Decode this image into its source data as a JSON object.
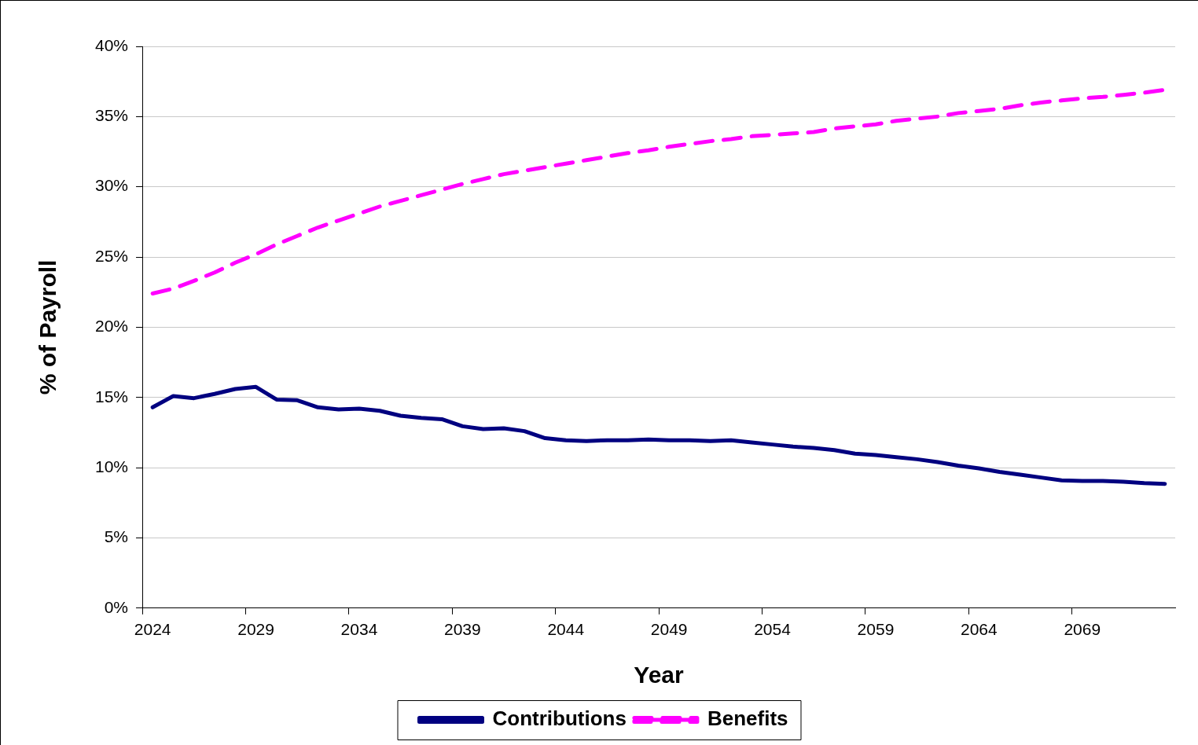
{
  "chart_data": {
    "type": "line",
    "xlabel": "Year",
    "ylabel": "% of Payroll",
    "categories": [
      "2024",
      null,
      null,
      null,
      null,
      "2029",
      null,
      null,
      null,
      null,
      "2034",
      null,
      null,
      null,
      null,
      "2039",
      null,
      null,
      null,
      null,
      "2044",
      null,
      null,
      null,
      null,
      "2049",
      null,
      null,
      null,
      null,
      "2054",
      null,
      null,
      null,
      null,
      "2059",
      null,
      null,
      null,
      null,
      "2064",
      null,
      null,
      null,
      null,
      "2069",
      null,
      null,
      null,
      null
    ],
    "series": [
      {
        "name": "Contributions",
        "color": "#000080",
        "line_style": "solid",
        "values": [
          14.3,
          15.1,
          14.95,
          15.25,
          15.6,
          15.75,
          14.85,
          14.8,
          14.3,
          14.15,
          14.2,
          14.05,
          13.7,
          13.55,
          13.45,
          12.95,
          12.75,
          12.8,
          12.6,
          12.1,
          11.95,
          11.9,
          11.95,
          11.95,
          12.0,
          11.95,
          11.95,
          11.9,
          11.95,
          11.8,
          11.65,
          11.5,
          11.4,
          11.25,
          11.0,
          10.9,
          10.75,
          10.6,
          10.4,
          10.15,
          9.95,
          9.7,
          9.5,
          9.3,
          9.1,
          9.05,
          9.05,
          9.0,
          8.9,
          8.85
        ]
      },
      {
        "name": "Benefits",
        "color": "#ff00ff",
        "line_style": "dashed",
        "values": [
          22.4,
          22.75,
          23.3,
          23.9,
          24.6,
          25.2,
          25.9,
          26.5,
          27.1,
          27.6,
          28.1,
          28.6,
          29.0,
          29.4,
          29.8,
          30.2,
          30.55,
          30.9,
          31.15,
          31.4,
          31.65,
          31.9,
          32.15,
          32.4,
          32.6,
          32.85,
          33.05,
          33.25,
          33.4,
          33.6,
          33.7,
          33.8,
          33.9,
          34.15,
          34.3,
          34.45,
          34.7,
          34.85,
          35.0,
          35.25,
          35.4,
          35.55,
          35.8,
          36.0,
          36.15,
          36.3,
          36.4,
          36.55,
          36.7,
          36.9
        ]
      }
    ],
    "ylim": [
      0,
      40
    ],
    "yticks": [
      {
        "value": 0,
        "label": "0%"
      },
      {
        "value": 5,
        "label": "5%"
      },
      {
        "value": 10,
        "label": "10%"
      },
      {
        "value": 15,
        "label": "15%"
      },
      {
        "value": 20,
        "label": "20%"
      },
      {
        "value": 25,
        "label": "25%"
      },
      {
        "value": 30,
        "label": "30%"
      },
      {
        "value": 35,
        "label": "35%"
      },
      {
        "value": 40,
        "label": "40%"
      }
    ],
    "grid": "y",
    "legend": "bottom",
    "marker": "none"
  }
}
